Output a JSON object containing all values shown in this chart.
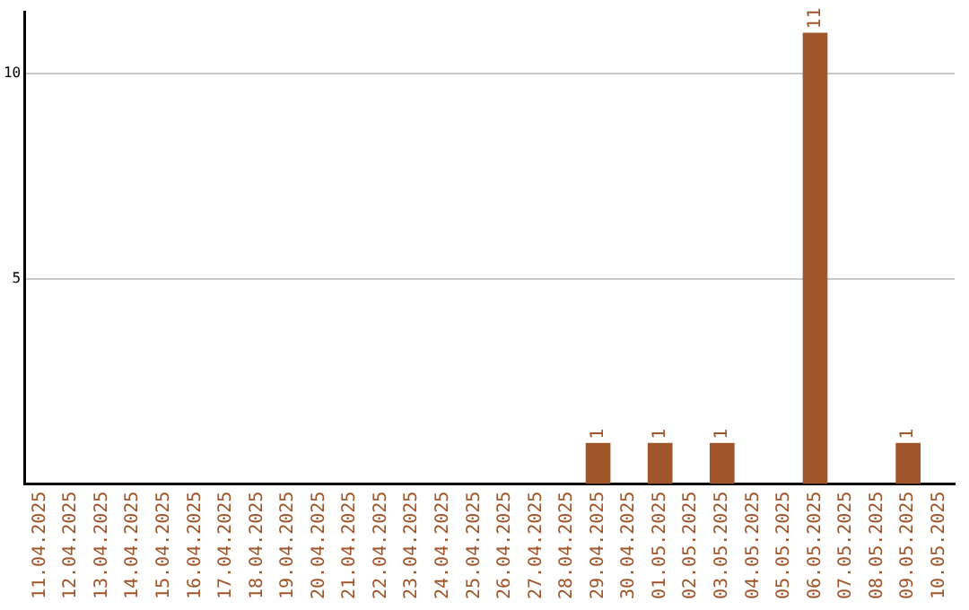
{
  "chart_data": {
    "type": "bar",
    "categories": [
      "11.04.2025",
      "12.04.2025",
      "13.04.2025",
      "14.04.2025",
      "15.04.2025",
      "16.04.2025",
      "17.04.2025",
      "18.04.2025",
      "19.04.2025",
      "20.04.2025",
      "21.04.2025",
      "22.04.2025",
      "23.04.2025",
      "24.04.2025",
      "25.04.2025",
      "26.04.2025",
      "27.04.2025",
      "28.04.2025",
      "29.04.2025",
      "30.04.2025",
      "01.05.2025",
      "02.05.2025",
      "03.05.2025",
      "04.05.2025",
      "05.05.2025",
      "06.05.2025",
      "07.05.2025",
      "08.05.2025",
      "09.05.2025",
      "10.05.2025"
    ],
    "values": [
      0,
      0,
      0,
      0,
      0,
      0,
      0,
      0,
      0,
      0,
      0,
      0,
      0,
      0,
      0,
      0,
      0,
      0,
      1,
      0,
      1,
      0,
      1,
      0,
      0,
      11,
      0,
      0,
      1,
      0
    ],
    "value_labels": [
      null,
      null,
      null,
      null,
      null,
      null,
      null,
      null,
      null,
      null,
      null,
      null,
      null,
      null,
      null,
      null,
      null,
      null,
      "1",
      null,
      "1",
      null,
      "1",
      null,
      null,
      "11",
      null,
      null,
      "1",
      null
    ],
    "color": "#a0562a",
    "ylim": [
      0,
      11.5
    ],
    "yticks": [
      5,
      10
    ],
    "grid": "y",
    "legend": false
  }
}
